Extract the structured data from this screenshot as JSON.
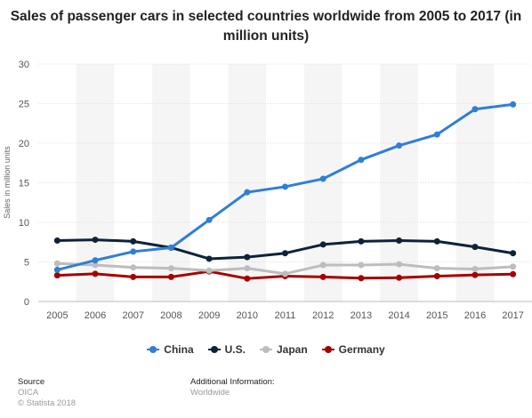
{
  "chart_data": {
    "type": "line",
    "title": "Sales of passenger cars in selected countries worldwide from 2005 to 2017 (in million units)",
    "ylabel": "Sales in million units",
    "xlabel": "",
    "ylim": [
      0,
      30
    ],
    "yticks": [
      0,
      5,
      10,
      15,
      20,
      25,
      30
    ],
    "grid": true,
    "legend_position": "bottom",
    "x": [
      "2005",
      "2006",
      "2007",
      "2008",
      "2009",
      "2010",
      "2011",
      "2012",
      "2013",
      "2014",
      "2015",
      "2016",
      "2017"
    ],
    "series": [
      {
        "name": "China",
        "color": "#2f7ed8",
        "values": [
          4.0,
          5.2,
          6.3,
          6.8,
          10.3,
          13.8,
          14.5,
          15.5,
          17.9,
          19.7,
          21.1,
          24.3,
          24.9
        ]
      },
      {
        "name": "U.S.",
        "color": "#0d233a",
        "values": [
          7.7,
          7.8,
          7.6,
          6.8,
          5.4,
          5.6,
          6.1,
          7.2,
          7.6,
          7.7,
          7.6,
          6.9,
          6.1
        ]
      },
      {
        "name": "Japan",
        "color": "#bdbdbd",
        "values": [
          4.8,
          4.6,
          4.3,
          4.2,
          3.9,
          4.2,
          3.5,
          4.6,
          4.6,
          4.7,
          4.2,
          4.1,
          4.4
        ]
      },
      {
        "name": "Germany",
        "color": "#a80000",
        "values": [
          3.3,
          3.5,
          3.1,
          3.1,
          3.8,
          2.9,
          3.2,
          3.1,
          2.95,
          3.0,
          3.2,
          3.35,
          3.45
        ]
      }
    ]
  },
  "footer": {
    "source_heading": "Source",
    "source_name": "OICA",
    "copyright": "© Statista 2018",
    "info_heading": "Additional Information:",
    "info_value": "Worldwide"
  }
}
